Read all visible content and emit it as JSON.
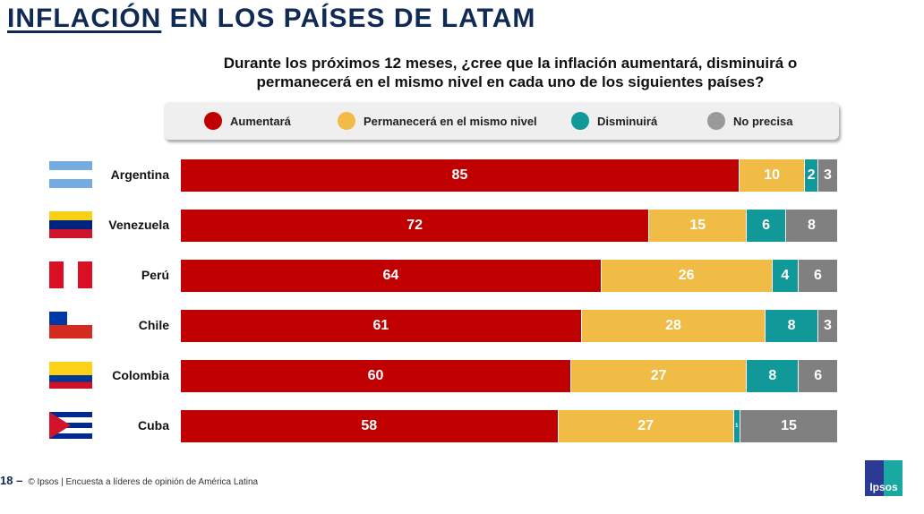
{
  "title_underlined": "INFLACIÓN",
  "title_rest": " EN LOS PAÍSES DE LATAM",
  "chart_data": {
    "type": "bar",
    "orientation": "horizontal-stacked-100",
    "title": "Durante los próximos 12 meses, ¿cree que la inflación aumentará, disminuirá o permanecerá en el mismo nivel en cada uno de los siguientes países?",
    "legend_placement": "top",
    "categories": [
      "Argentina",
      "Venezuela",
      "Perú",
      "Chile",
      "Colombia",
      "Cuba"
    ],
    "series": [
      {
        "name": "Aumentará",
        "color": "#c00000",
        "values": [
          85,
          72,
          64,
          61,
          60,
          58
        ]
      },
      {
        "name": "Permanecerá en el mismo nivel",
        "color": "#f0bc46",
        "values": [
          10,
          15,
          26,
          28,
          27,
          27
        ]
      },
      {
        "name": "Disminuirá",
        "color": "#11999a",
        "values": [
          2,
          6,
          4,
          8,
          8,
          1
        ]
      },
      {
        "name": "No precisa",
        "color": "#808080",
        "values": [
          3,
          8,
          6,
          3,
          6,
          15
        ]
      }
    ]
  },
  "footer": {
    "page": "18 –",
    "text": "© Ipsos | Encuesta a líderes de opinión de América Latina"
  },
  "logo_text": "Ipsos"
}
